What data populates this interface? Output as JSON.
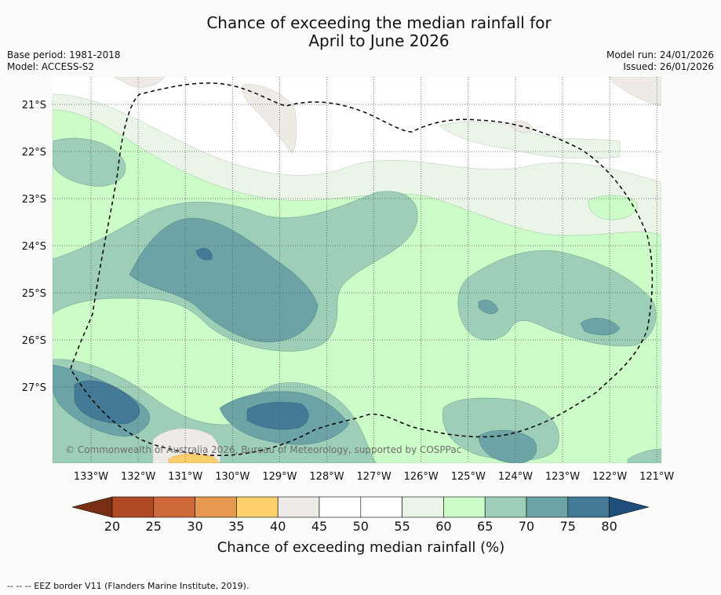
{
  "title_line1": "Chance of exceeding the median rainfall for",
  "title_line2": "April to June 2026",
  "base_period": "Base period: 1981-2018",
  "model": "Model: ACCESS-S2",
  "model_run": "Model run: 24/01/2026",
  "issued": "Issued: 26/01/2026",
  "copyright": "© Commonwealth of Australia 2026, Bureau of Meteorology, supported by COSPPac",
  "lat_labels": [
    "21°S",
    "22°S",
    "23°S",
    "24°S",
    "25°S",
    "26°S",
    "27°S"
  ],
  "lon_labels": [
    "133°W",
    "132°W",
    "131°W",
    "130°W",
    "129°W",
    "128°W",
    "127°W",
    "126°W",
    "125°W",
    "124°W",
    "123°W",
    "122°W",
    "121°W"
  ],
  "colorbar": {
    "label": "Chance of exceeding median rainfall (%)",
    "ticks": [
      "20",
      "25",
      "30",
      "35",
      "40",
      "45",
      "50",
      "55",
      "60",
      "65",
      "70",
      "75",
      "80"
    ],
    "colors": [
      "#7a2e16",
      "#b04a25",
      "#d0693a",
      "#e6994f",
      "#fecf6b",
      "#eeebe6",
      "#ffffff",
      "#ffffff",
      "#eaf5e8",
      "#ccfdc8",
      "#9dcfb8",
      "#6ca3a6",
      "#437b96",
      "#1d4e7c"
    ]
  },
  "footer": "-- -- -- EEZ border V11 (Flanders Marine Institute, 2019)."
}
